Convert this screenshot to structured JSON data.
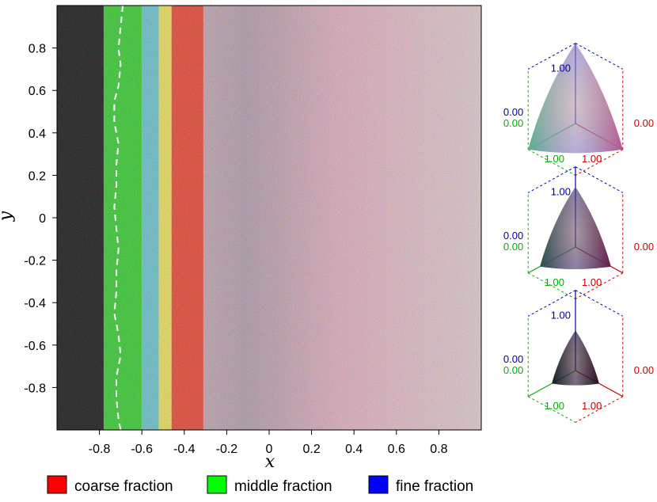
{
  "chart_data": {
    "type": "heatmap",
    "title": "",
    "xlabel": "x",
    "ylabel": "y",
    "xlim": [
      -1,
      1
    ],
    "ylim": [
      -1,
      1
    ],
    "x_ticks": [
      "-0.8",
      "-0.6",
      "-0.4",
      "-0.2",
      "0",
      "0.2",
      "0.4",
      "0.6",
      "0.8"
    ],
    "y_ticks": [
      "0.8",
      "0.6",
      "0.4",
      "0.2",
      "0",
      "-0.2",
      "-0.4",
      "-0.6",
      "-0.8"
    ],
    "grid": false,
    "color_encoding": {
      "red": "coarse fraction",
      "green": "middle fraction",
      "blue": "fine fraction"
    },
    "bands": [
      {
        "name": "black region",
        "x_from": -1.0,
        "x_to": -0.78,
        "color": "#000000"
      },
      {
        "name": "green band",
        "x_from": -0.78,
        "x_to": -0.6,
        "color": "#22c41c"
      },
      {
        "name": "cyan band",
        "x_from": -0.6,
        "x_to": -0.52,
        "color": "#58b8c4"
      },
      {
        "name": "yellow band",
        "x_from": -0.52,
        "x_to": -0.46,
        "color": "#e4d84a"
      },
      {
        "name": "red band",
        "x_from": -0.46,
        "x_to": -0.31,
        "color": "#e2331f"
      },
      {
        "name": "pink mixed region",
        "x_from": -0.31,
        "x_to": 1.0,
        "color": "#d0a7b2"
      }
    ],
    "dashed_front": [
      [
        -0.69,
        1.0
      ],
      [
        -0.7,
        0.9
      ],
      [
        -0.71,
        0.8
      ],
      [
        -0.7,
        0.72
      ],
      [
        -0.71,
        0.62
      ],
      [
        -0.73,
        0.55
      ],
      [
        -0.73,
        0.45
      ],
      [
        -0.71,
        0.35
      ],
      [
        -0.72,
        0.25
      ],
      [
        -0.72,
        0.15
      ],
      [
        -0.73,
        0.05
      ],
      [
        -0.72,
        -0.05
      ],
      [
        -0.71,
        -0.15
      ],
      [
        -0.72,
        -0.25
      ],
      [
        -0.72,
        -0.35
      ],
      [
        -0.73,
        -0.45
      ],
      [
        -0.71,
        -0.55
      ],
      [
        -0.7,
        -0.65
      ],
      [
        -0.72,
        -0.75
      ],
      [
        -0.72,
        -0.85
      ],
      [
        -0.71,
        -0.95
      ],
      [
        -0.7,
        -1.0
      ]
    ],
    "legend": {
      "placement": "bottom",
      "entries": [
        {
          "label": "coarse fraction",
          "color": "#ff0000"
        },
        {
          "label": "middle fraction",
          "color": "#00ff00"
        },
        {
          "label": "fine fraction",
          "color": "#0000ff"
        }
      ]
    },
    "color_keys": [
      {
        "scale": 1.0,
        "labels": {
          "fine_max": "1.00",
          "fine_min": "0.00",
          "middle_min": "0.00",
          "coarse_min": "0.00",
          "middle_max": "1.00",
          "coarse_max": "1.00"
        }
      },
      {
        "scale": 0.75,
        "labels": {
          "fine_max": "1.00",
          "fine_min": "0.00",
          "middle_min": "0.00",
          "coarse_min": "0.00",
          "middle_max": "1.00",
          "coarse_max": "1.00"
        }
      },
      {
        "scale": 0.5,
        "labels": {
          "fine_max": "1.00",
          "fine_min": "0.00",
          "middle_min": "0.00",
          "coarse_min": "0.00",
          "middle_max": "1.00",
          "coarse_max": "1.00"
        }
      }
    ]
  },
  "colors": {
    "coarse": "#cc0000",
    "middle": "#00b000",
    "fine": "#0000aa",
    "dashed_line": "#ffffff"
  }
}
